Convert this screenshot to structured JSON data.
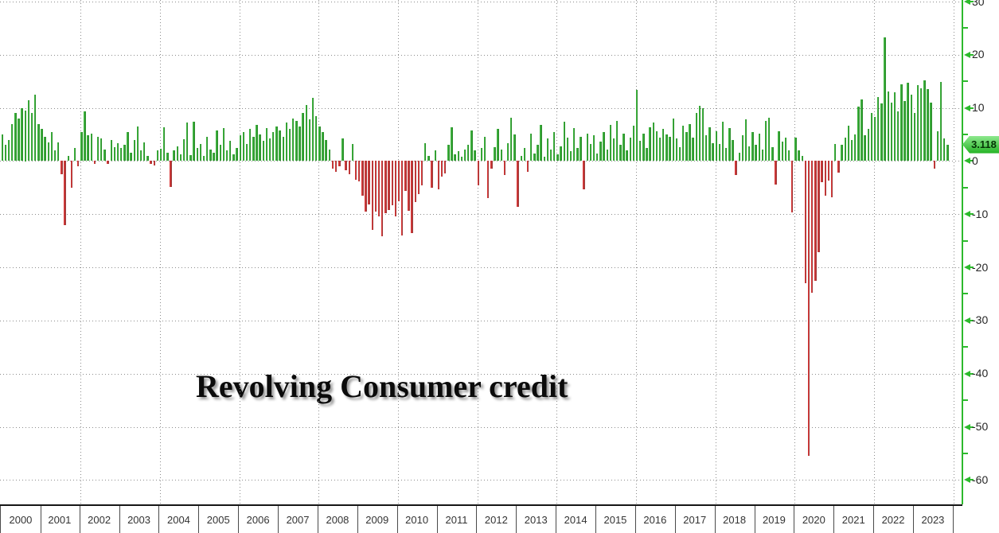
{
  "chart_data": {
    "type": "bar",
    "title": "Revolving Consumer credit",
    "subtitle": "",
    "xlabel": "",
    "ylabel": "",
    "frequency": "monthly",
    "x_start": "2000-01",
    "x_end": "2023-11",
    "ylim": [
      -64.6,
      30.3
    ],
    "grid": "dotted, horizontal every 10 units, vertical every 2 years",
    "legend_position": "none",
    "y_axis_side": "right",
    "y_ticks": [
      30,
      20,
      10,
      0,
      -10,
      -20,
      -30,
      -40,
      -50,
      -60
    ],
    "y_tick_labels": [
      "30",
      "20",
      "10",
      "0",
      "-10",
      "-20",
      "-30",
      "-40",
      "-50",
      "-60"
    ],
    "y_minor_ticks": [
      25,
      15,
      5,
      -5,
      -15,
      -25,
      -35,
      -45,
      -55
    ],
    "year_labels": [
      "2000",
      "2001",
      "2002",
      "2003",
      "2004",
      "2005",
      "2006",
      "2007",
      "2008",
      "2009",
      "2010",
      "2011",
      "2012",
      "2013",
      "2014",
      "2015",
      "2016",
      "2017",
      "2018",
      "2019",
      "2020",
      "2021",
      "2022",
      "2023"
    ],
    "last_value": 3.118,
    "last_value_label": "3.118",
    "colors": {
      "positive_bar": "#3cb53c",
      "positive_bar_dark": "#2e8f2e",
      "negative_bar": "#d93535",
      "negative_bar_dark": "#a03c3c",
      "axis_line": "#2db92d",
      "tag_background": "#25b325",
      "gridline": "#8c8c8c",
      "tick_label": "#262626",
      "title_text": "#0b0b0b"
    },
    "values": [
      5.0,
      3.0,
      4.0,
      7.0,
      9.0,
      8.0,
      10.0,
      9.5,
      11.5,
      9.0,
      12.5,
      7.0,
      6.0,
      4.5,
      3.5,
      5.5,
      2.0,
      3.5,
      -2.5,
      -12.0,
      1.0,
      -5.0,
      2.5,
      -1.0,
      5.5,
      9.3,
      4.8,
      5.2,
      -0.5,
      4.6,
      4.2,
      2.2,
      -0.6,
      4.0,
      2.6,
      3.4,
      2.5,
      3.0,
      5.5,
      1.5,
      4.0,
      6.5,
      2.0,
      3.5,
      1.0,
      -0.6,
      -0.8,
      2.0,
      2.3,
      6.4,
      1.5,
      -4.9,
      2.0,
      2.8,
      1.2,
      4.1,
      7.2,
      1.1,
      7.4,
      2.5,
      3.2,
      1.0,
      4.5,
      2.2,
      1.5,
      5.8,
      3.0,
      6.2,
      2.0,
      3.8,
      1.2,
      2.5,
      4.8,
      5.5,
      3.2,
      6.0,
      4.5,
      6.8,
      5.0,
      3.8,
      6.2,
      4.2,
      5.5,
      6.5,
      5.8,
      4.5,
      7.2,
      6.0,
      8.0,
      7.5,
      6.5,
      9.0,
      10.5,
      7.8,
      11.9,
      8.5,
      6.5,
      5.5,
      4.0,
      2.2,
      -1.5,
      -2.0,
      -1.0,
      4.2,
      -1.8,
      -2.5,
      3.2,
      -3.5,
      -3.8,
      -6.5,
      -9.5,
      -8.2,
      -13.0,
      -9.6,
      -10.5,
      -14.2,
      -9.8,
      -9.3,
      -8.4,
      -10.4,
      -7.6,
      -14.0,
      -5.6,
      -9.4,
      -13.6,
      -7.8,
      -6.3,
      -4.6,
      3.4,
      1.0,
      -5.0,
      2.0,
      -5.4,
      -2.9,
      -2.3,
      3.0,
      6.4,
      1.2,
      1.8,
      0.8,
      2.2,
      3.1,
      5.8,
      2.0,
      -4.6,
      2.4,
      4.6,
      -7.0,
      -1.4,
      2.6,
      6.1,
      2.1,
      -2.6,
      3.4,
      8.2,
      5.0,
      -8.6,
      1.0,
      2.5,
      -2.0,
      5.2,
      1.4,
      3.0,
      6.8,
      0.8,
      4.2,
      2.2,
      5.5,
      1.2,
      2.8,
      7.4,
      4.4,
      1.8,
      6.2,
      2.4,
      4.6,
      -5.4,
      5.2,
      3.2,
      4.8,
      1.4,
      3.6,
      5.4,
      2.2,
      6.8,
      4.2,
      7.6,
      3.0,
      5.2,
      2.0,
      4.4,
      6.6,
      13.4,
      3.8,
      5.2,
      2.4,
      6.4,
      7.2,
      5.6,
      4.4,
      6.0,
      5.0,
      4.6,
      8.0,
      4.2,
      2.6,
      6.6,
      5.4,
      7.0,
      4.4,
      9.0,
      10.4,
      10.0,
      4.8,
      6.4,
      3.4,
      5.6,
      3.2,
      7.4,
      2.4,
      6.2,
      4.0,
      -2.7,
      1.6,
      4.8,
      7.8,
      2.8,
      5.4,
      3.0,
      5.2,
      2.2,
      7.6,
      8.2,
      2.6,
      -4.4,
      5.6,
      3.6,
      4.4,
      2.0,
      -9.7,
      4.4,
      2.0,
      1.0,
      -23.0,
      -55.5,
      -24.8,
      -22.5,
      -17.2,
      -4.0,
      -6.6,
      -3.7,
      -6.8,
      3.2,
      -2.2,
      3.0,
      4.4,
      6.6,
      3.9,
      5.0,
      10.3,
      11.6,
      4.9,
      6.1,
      9.1,
      8.3,
      12.1,
      10.9,
      23.3,
      13.1,
      11.0,
      12.9,
      9.4,
      14.5,
      11.3,
      14.8,
      12.5,
      9.1,
      14.3,
      13.7,
      15.2,
      13.5,
      11.0,
      -1.5,
      5.6,
      14.9,
      4.2,
      3.118
    ]
  }
}
